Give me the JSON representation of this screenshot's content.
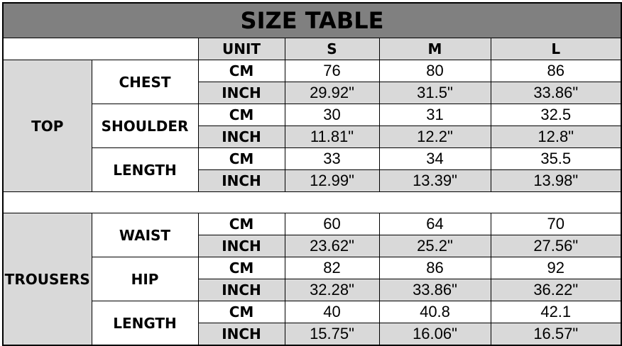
{
  "title": "SIZE TABLE",
  "header": {
    "unit": "UNIT",
    "sizes": [
      "S",
      "M",
      "L"
    ]
  },
  "colors": {
    "title_bg": "#808080",
    "shade": "#d9d9d9",
    "border": "#000000"
  },
  "sections": [
    {
      "name": "TOP",
      "measures": [
        {
          "name": "CHEST",
          "rows": [
            {
              "unit": "CM",
              "values": [
                "76",
                "80",
                "86"
              ]
            },
            {
              "unit": "INCH",
              "values": [
                "29.92\"",
                "31.5\"",
                "33.86\""
              ]
            }
          ]
        },
        {
          "name": "SHOULDER",
          "rows": [
            {
              "unit": "CM",
              "values": [
                "30",
                "31",
                "32.5"
              ]
            },
            {
              "unit": "INCH",
              "values": [
                "11.81\"",
                "12.2\"",
                "12.8\""
              ]
            }
          ]
        },
        {
          "name": "LENGTH",
          "rows": [
            {
              "unit": "CM",
              "values": [
                "33",
                "34",
                "35.5"
              ]
            },
            {
              "unit": "INCH",
              "values": [
                "12.99\"",
                "13.39\"",
                "13.98\""
              ]
            }
          ]
        }
      ]
    },
    {
      "name": "TROUSERS",
      "measures": [
        {
          "name": "WAIST",
          "rows": [
            {
              "unit": "CM",
              "values": [
                "60",
                "64",
                "70"
              ]
            },
            {
              "unit": "INCH",
              "values": [
                "23.62\"",
                "25.2\"",
                "27.56\""
              ]
            }
          ]
        },
        {
          "name": "HIP",
          "rows": [
            {
              "unit": "CM",
              "values": [
                "82",
                "86",
                "92"
              ]
            },
            {
              "unit": "INCH",
              "values": [
                "32.28\"",
                "33.86\"",
                "36.22\""
              ]
            }
          ]
        },
        {
          "name": "LENGTH",
          "rows": [
            {
              "unit": "CM",
              "values": [
                "40",
                "40.8",
                "42.1"
              ]
            },
            {
              "unit": "INCH",
              "values": [
                "15.75\"",
                "16.06\"",
                "16.57\""
              ]
            }
          ]
        }
      ]
    }
  ]
}
